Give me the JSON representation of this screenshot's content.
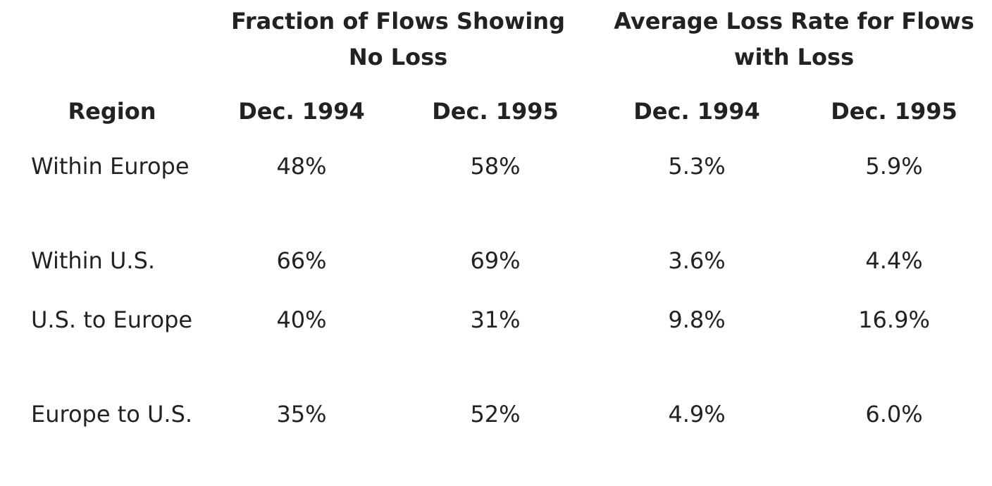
{
  "table": {
    "group_headers": [
      "Fraction of Flows Showing No Loss",
      "Average Loss Rate for Flows with Loss"
    ],
    "column_headers": [
      "Region",
      "Dec. 1994",
      "Dec. 1995",
      "Dec. 1994",
      "Dec. 1995"
    ],
    "rows": [
      {
        "region": "Within Europe",
        "no_loss_1994": "48%",
        "no_loss_1995": "58%",
        "avg_loss_1994": "5.3%",
        "avg_loss_1995": "5.9%"
      },
      {
        "region": "Within U.S.",
        "no_loss_1994": "66%",
        "no_loss_1995": "69%",
        "avg_loss_1994": "3.6%",
        "avg_loss_1995": "4.4%"
      },
      {
        "region": "U.S. to Europe",
        "no_loss_1994": "40%",
        "no_loss_1995": "31%",
        "avg_loss_1994": "9.8%",
        "avg_loss_1995": "16.9%"
      },
      {
        "region": "Europe to U.S.",
        "no_loss_1994": "35%",
        "no_loss_1995": "52%",
        "avg_loss_1994": "4.9%",
        "avg_loss_1995": "6.0%"
      }
    ]
  }
}
